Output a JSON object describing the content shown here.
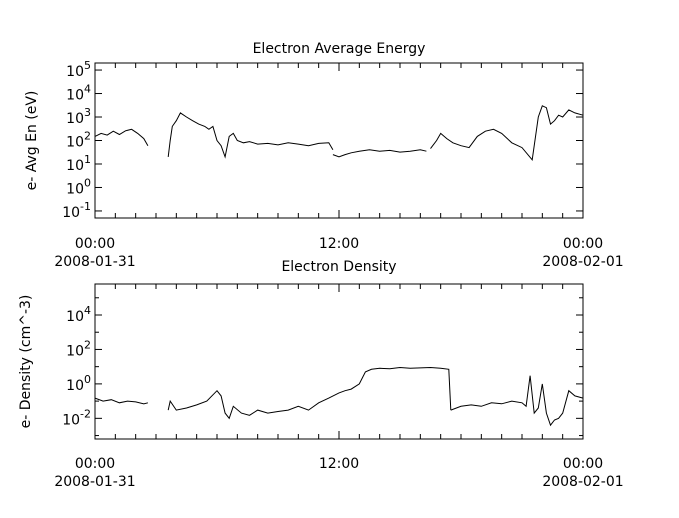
{
  "chart_data": [
    {
      "type": "line",
      "title": "Electron Average Energy",
      "xlabel": "",
      "ylabel": "e- Avg En (eV)",
      "yscale": "log",
      "ylim_exponents": [
        -1.3,
        5.3
      ],
      "xlim_hours": [
        0,
        24
      ],
      "x_ticks": [
        {
          "hour": 0,
          "time": "00:00",
          "date": "2008-01-31"
        },
        {
          "hour": 12,
          "time": "12:00",
          "date": ""
        },
        {
          "hour": 24,
          "time": "00:00",
          "date": "2008-02-01"
        }
      ],
      "y_ticks": [
        {
          "exp": -1,
          "base": "10",
          "sup": "-1"
        },
        {
          "exp": 0,
          "base": "10",
          "sup": "0"
        },
        {
          "exp": 1,
          "base": "10",
          "sup": "1"
        },
        {
          "exp": 2,
          "base": "10",
          "sup": "2"
        },
        {
          "exp": 3,
          "base": "10",
          "sup": "3"
        },
        {
          "exp": 4,
          "base": "10",
          "sup": "4"
        },
        {
          "exp": 5,
          "base": "10",
          "sup": "5"
        }
      ],
      "segments": [
        {
          "x": [
            0.0,
            0.3,
            0.6,
            0.9,
            1.2,
            1.5,
            1.8,
            2.1,
            2.4,
            2.6
          ],
          "y": [
            150,
            200,
            170,
            250,
            180,
            260,
            300,
            200,
            120,
            60
          ]
        },
        {
          "x": [
            3.6,
            3.7,
            3.8,
            4.0,
            4.2,
            4.5,
            4.8,
            5.1,
            5.4,
            5.6,
            5.8,
            6.0,
            6.2,
            6.4,
            6.6,
            6.8,
            7.0,
            7.3,
            7.6,
            8.0,
            8.5,
            9.0,
            9.5,
            10.0,
            10.5,
            11.0,
            11.5,
            11.7
          ],
          "y": [
            20,
            100,
            400,
            700,
            1500,
            1000,
            700,
            500,
            400,
            300,
            400,
            100,
            60,
            20,
            150,
            200,
            100,
            80,
            90,
            70,
            75,
            65,
            80,
            70,
            60,
            75,
            80,
            40
          ]
        },
        {
          "x": [
            11.7,
            12.0,
            12.3,
            12.6,
            13.0,
            13.5,
            14.0,
            14.5,
            15.0,
            15.5,
            16.0,
            16.3
          ],
          "y": [
            25,
            20,
            25,
            30,
            35,
            40,
            35,
            38,
            32,
            35,
            40,
            35
          ]
        },
        {
          "x": [
            16.5,
            16.8,
            17.0,
            17.3,
            17.6,
            18.0,
            18.4,
            18.8,
            19.2,
            19.6,
            20.0,
            20.5,
            21.0,
            21.5,
            21.8,
            22.0,
            22.2,
            22.4,
            22.6,
            22.8,
            23.0,
            23.3,
            23.6,
            24.0
          ],
          "y": [
            45,
            100,
            200,
            120,
            80,
            60,
            50,
            150,
            250,
            300,
            200,
            80,
            50,
            15,
            1000,
            3000,
            2500,
            500,
            700,
            1200,
            1000,
            2000,
            1500,
            1200
          ]
        }
      ]
    },
    {
      "type": "line",
      "title": "Electron Density",
      "xlabel": "",
      "ylabel": "e- Density (cm^-3)",
      "yscale": "log",
      "ylim_exponents": [
        -3.2,
        5.8
      ],
      "xlim_hours": [
        0,
        24
      ],
      "x_ticks": [
        {
          "hour": 0,
          "time": "00:00",
          "date": "2008-01-31"
        },
        {
          "hour": 12,
          "time": "12:00",
          "date": ""
        },
        {
          "hour": 24,
          "time": "00:00",
          "date": "2008-02-01"
        }
      ],
      "y_ticks": [
        {
          "exp": -2,
          "base": "10",
          "sup": "-2"
        },
        {
          "exp": 0,
          "base": "10",
          "sup": "0"
        },
        {
          "exp": 2,
          "base": "10",
          "sup": "2"
        },
        {
          "exp": 4,
          "base": "10",
          "sup": "4"
        }
      ],
      "segments": [
        {
          "x": [
            0.0,
            0.4,
            0.8,
            1.2,
            1.6,
            2.0,
            2.4,
            2.6
          ],
          "y": [
            0.15,
            0.1,
            0.12,
            0.08,
            0.1,
            0.09,
            0.07,
            0.08
          ]
        },
        {
          "x": [
            3.6,
            3.7,
            4.0,
            4.5,
            5.0,
            5.5,
            6.0,
            6.2,
            6.4,
            6.6,
            6.8,
            7.2,
            7.6,
            8.0,
            8.5,
            9.0,
            9.5,
            10.0,
            10.5,
            11.0,
            11.5,
            12.0,
            12.3,
            12.6,
            13.0,
            13.3,
            13.6,
            14.0,
            14.5,
            15.0,
            15.5,
            16.0,
            16.5,
            17.0,
            17.4,
            17.5
          ],
          "y": [
            0.03,
            0.1,
            0.03,
            0.04,
            0.06,
            0.1,
            0.4,
            0.2,
            0.02,
            0.01,
            0.05,
            0.02,
            0.015,
            0.03,
            0.02,
            0.025,
            0.03,
            0.05,
            0.03,
            0.08,
            0.15,
            0.3,
            0.4,
            0.5,
            1.0,
            5.0,
            7.0,
            8.0,
            7.5,
            9.0,
            8.0,
            8.5,
            9.0,
            8.0,
            7.0,
            0.03
          ]
        },
        {
          "x": [
            17.5,
            18.0,
            18.5,
            19.0,
            19.5,
            20.0,
            20.5,
            21.0,
            21.2,
            21.4,
            21.6,
            21.8,
            22.0,
            22.2,
            22.4,
            22.6,
            22.8,
            23.0,
            23.3,
            23.6,
            24.0
          ],
          "y": [
            0.03,
            0.05,
            0.06,
            0.05,
            0.08,
            0.07,
            0.1,
            0.08,
            0.05,
            3.0,
            0.02,
            0.04,
            1.0,
            0.02,
            0.004,
            0.008,
            0.01,
            0.02,
            0.4,
            0.2,
            0.15
          ]
        }
      ]
    }
  ]
}
